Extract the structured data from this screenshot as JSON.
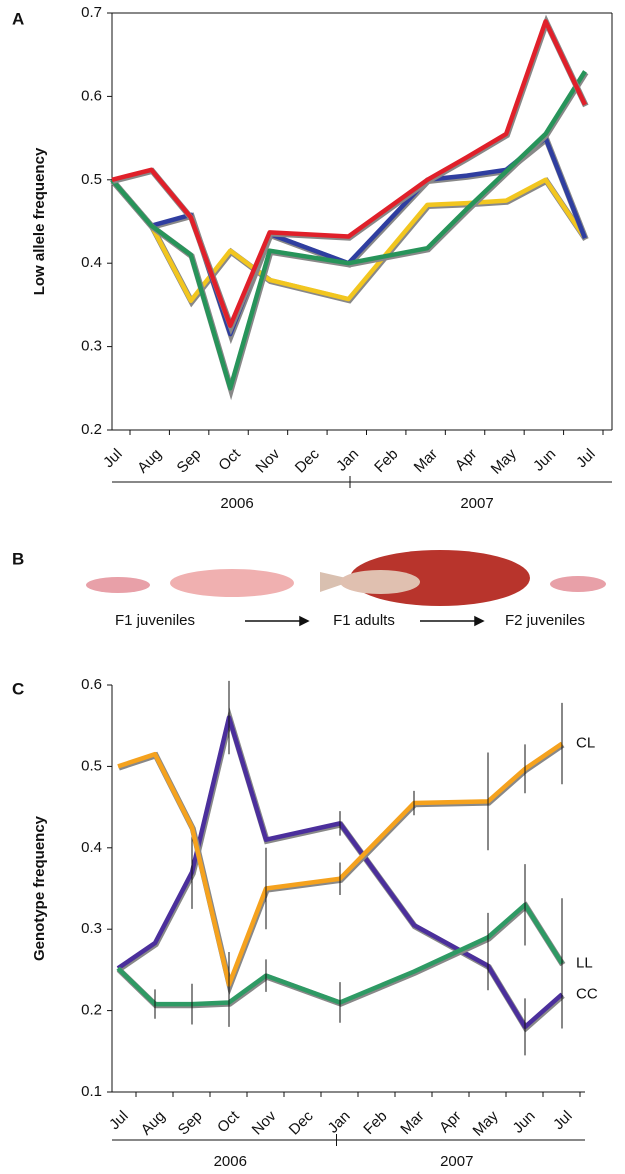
{
  "chart_data": [
    {
      "type": "line",
      "panel_label": "A",
      "ylabel": "Low allele frequency",
      "categories": [
        "Jul",
        "Aug",
        "Sep",
        "Oct",
        "Nov",
        "Dec",
        "Jan",
        "Feb",
        "Mar",
        "Apr",
        "May",
        "Jun",
        "Jul"
      ],
      "group_labels": [
        "2006",
        "2007"
      ],
      "series": [
        {
          "color": "#f2c61f",
          "values": [
            0.5,
            0.445,
            0.355,
            0.415,
            0.38,
            null,
            0.357,
            null,
            0.47,
            0.472,
            0.475,
            0.5,
            0.43
          ]
        },
        {
          "color": "#2f3ea0",
          "values": [
            0.5,
            0.445,
            0.458,
            0.315,
            0.435,
            null,
            0.4,
            null,
            0.5,
            0.505,
            0.512,
            0.55,
            0.43
          ]
        },
        {
          "color": "#27945a",
          "values": [
            0.5,
            0.445,
            0.41,
            0.25,
            0.415,
            null,
            0.4,
            null,
            0.418,
            0.465,
            0.51,
            0.555,
            0.63
          ]
        },
        {
          "color": "#e0202a",
          "values": [
            0.5,
            0.512,
            0.455,
            0.325,
            0.437,
            null,
            0.432,
            null,
            0.5,
            0.527,
            0.555,
            0.69,
            0.59
          ]
        }
      ],
      "ylim": [
        0.2,
        0.7
      ],
      "yticks": [
        0.2,
        0.3,
        0.4,
        0.5,
        0.6,
        0.7
      ],
      "frame": true
    },
    {
      "type": "line",
      "panel_label": "C",
      "ylabel": "Genotype frequency",
      "categories": [
        "Jul",
        "Aug",
        "Sep",
        "Oct",
        "Nov",
        "Dec",
        "Jan",
        "Feb",
        "Mar",
        "Apr",
        "May",
        "Jun",
        "Jul"
      ],
      "group_labels": [
        "2006",
        "2007"
      ],
      "series": [
        {
          "name": "CC",
          "color": "#4b2f9c",
          "values": [
            0.252,
            0.283,
            0.37,
            0.56,
            0.41,
            null,
            0.43,
            null,
            0.305,
            null,
            0.255,
            0.18,
            0.22
          ],
          "errors": [
            null,
            null,
            0.045,
            0.045,
            null,
            null,
            0.015,
            null,
            null,
            null,
            0.03,
            0.035,
            0.035
          ]
        },
        {
          "name": "LL",
          "color": "#2e9a64",
          "values": [
            0.252,
            0.208,
            0.208,
            0.21,
            0.243,
            null,
            0.21,
            null,
            0.248,
            null,
            0.29,
            0.33,
            0.258
          ],
          "errors": [
            null,
            0.018,
            0.025,
            0.03,
            0.02,
            null,
            0.025,
            null,
            null,
            null,
            0.03,
            0.05,
            0.08
          ]
        },
        {
          "name": "CL",
          "color": "#f5a21e",
          "values": [
            0.5,
            0.515,
            0.425,
            0.232,
            0.35,
            null,
            0.362,
            null,
            0.455,
            null,
            0.457,
            0.497,
            0.528
          ],
          "errors": [
            null,
            null,
            null,
            0.04,
            0.05,
            null,
            0.02,
            null,
            0.015,
            null,
            0.06,
            0.03,
            0.05
          ]
        }
      ],
      "ylim": [
        0.1,
        0.6
      ],
      "yticks": [
        0.1,
        0.2,
        0.3,
        0.4,
        0.5,
        0.6
      ],
      "frame": false
    }
  ],
  "panel_b": {
    "panel_label": "B",
    "labels": [
      "F1 juveniles",
      "F1 adults",
      "F2 juveniles"
    ]
  }
}
